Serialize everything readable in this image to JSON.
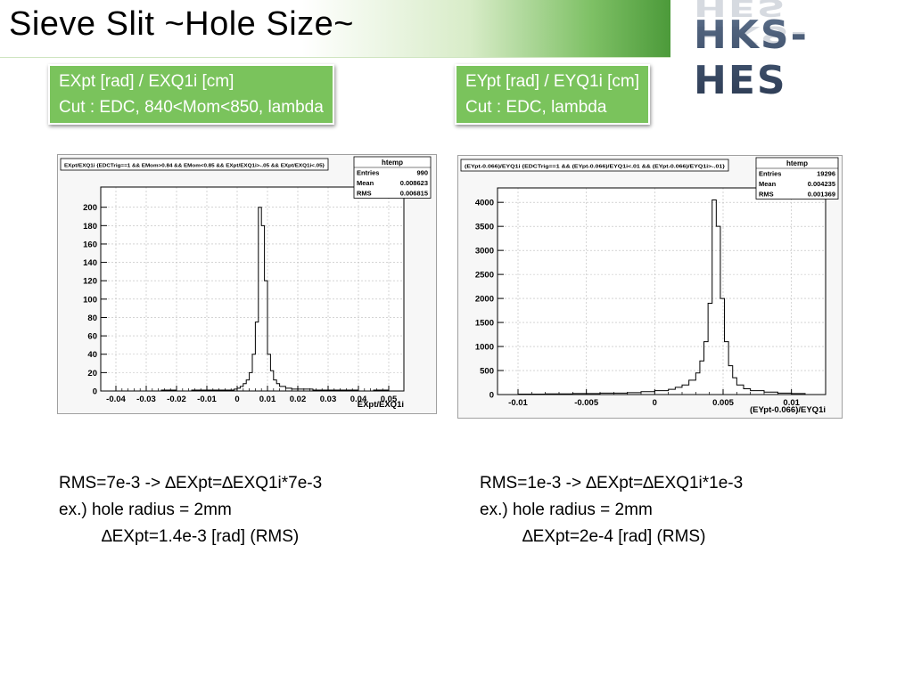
{
  "slide": {
    "title": "Sieve Slit ~Hole Size~",
    "logo_text": "HKS-HES"
  },
  "left_box": {
    "line1": "EXpt [rad] / EXQ1i [cm]",
    "line2": "Cut : EDC, 840<Mom<850, lambda"
  },
  "right_box": {
    "line1": "EYpt [rad] / EYQ1i [cm]",
    "line2": "Cut : EDC, lambda"
  },
  "left_notes": {
    "line1": "RMS=7e-3 -> ∆EXpt=∆EXQ1i*7e-3",
    "line2": "ex.) hole radius = 2mm",
    "line3": "∆EXpt=1.4e-3 [rad] (RMS)"
  },
  "right_notes": {
    "line1": "RMS=1e-3 -> ∆EXpt=∆EXQ1i*1e-3",
    "line2": "ex.) hole radius = 2mm",
    "line3": "∆EXpt=2e-4 [rad] (RMS)"
  },
  "chart_data": [
    {
      "type": "histogram",
      "title": "EXpt/EXQ1i {EDCTrig==1 && EMom>0.84 && EMom<0.85 && EXpt/EXQ1i>-.05 && EXpt/EXQ1i<.05}",
      "xlabel": "EXpt/EXQ1i",
      "ylabel": "",
      "xlim": [
        -0.045,
        0.055
      ],
      "ylim": [
        0,
        222
      ],
      "xticks": [
        -0.04,
        -0.03,
        -0.02,
        -0.01,
        0,
        0.01,
        0.02,
        0.03,
        0.04,
        0.05
      ],
      "xtick_labels": [
        "-0.04",
        "-0.03",
        "-0.02",
        "-0.01",
        "0",
        "0.01",
        "0.02",
        "0.03",
        "0.04",
        "0.05"
      ],
      "yticks": [
        0,
        20,
        40,
        60,
        80,
        100,
        120,
        140,
        160,
        180,
        200
      ],
      "ytick_labels": [
        "0",
        "20",
        "40",
        "60",
        "80",
        "100",
        "120",
        "140",
        "160",
        "180",
        "200"
      ],
      "grid": true,
      "stats": {
        "name": "htemp",
        "rows": [
          {
            "label": "Entries",
            "value": "990"
          },
          {
            "label": "Mean",
            "value": "0.008623"
          },
          {
            "label": "RMS",
            "value": "0.006815"
          }
        ]
      },
      "bins": [
        [
          -0.04,
          0
        ],
        [
          -0.035,
          0
        ],
        [
          -0.03,
          0
        ],
        [
          -0.025,
          1
        ],
        [
          -0.02,
          0
        ],
        [
          -0.015,
          1
        ],
        [
          -0.01,
          1
        ],
        [
          -0.005,
          1
        ],
        [
          -0.003,
          1
        ],
        [
          -0.001,
          2
        ],
        [
          0.0,
          3
        ],
        [
          0.001,
          5
        ],
        [
          0.002,
          8
        ],
        [
          0.003,
          12
        ],
        [
          0.004,
          20
        ],
        [
          0.005,
          40
        ],
        [
          0.006,
          75
        ],
        [
          0.007,
          200
        ],
        [
          0.008,
          180
        ],
        [
          0.009,
          120
        ],
        [
          0.01,
          40
        ],
        [
          0.011,
          22
        ],
        [
          0.012,
          12
        ],
        [
          0.013,
          8
        ],
        [
          0.014,
          5
        ],
        [
          0.016,
          3
        ],
        [
          0.018,
          2
        ],
        [
          0.02,
          2
        ],
        [
          0.025,
          1
        ],
        [
          0.03,
          1
        ],
        [
          0.035,
          1
        ],
        [
          0.04,
          0
        ],
        [
          0.045,
          1
        ]
      ]
    },
    {
      "type": "histogram",
      "title": "(EYpt-0.066)/EYQ1i {EDCTrig==1 && (EYpt-0.066)/EYQ1i<.01 && (EYpt-0.066)/EYQ1i>-.01}",
      "xlabel": "(EYpt-0.066)/EYQ1i",
      "ylabel": "",
      "xlim": [
        -0.0115,
        0.0125
      ],
      "ylim": [
        0,
        4300
      ],
      "xticks": [
        -0.01,
        -0.005,
        0,
        0.005,
        0.01
      ],
      "xtick_labels": [
        "-0.01",
        "-0.005",
        "0",
        "0.005",
        "0.01"
      ],
      "yticks": [
        0,
        500,
        1000,
        1500,
        2000,
        2500,
        3000,
        3500,
        4000
      ],
      "ytick_labels": [
        "0",
        "500",
        "1000",
        "1500",
        "2000",
        "2500",
        "3000",
        "3500",
        "4000"
      ],
      "grid": true,
      "stats": {
        "name": "htemp",
        "rows": [
          {
            "label": "Entries",
            "value": "19296"
          },
          {
            "label": "Mean",
            "value": "0.004235"
          },
          {
            "label": "RMS",
            "value": "0.001369"
          }
        ]
      },
      "bins": [
        [
          -0.01,
          10
        ],
        [
          -0.008,
          15
        ],
        [
          -0.006,
          20
        ],
        [
          -0.004,
          30
        ],
        [
          -0.002,
          40
        ],
        [
          -0.001,
          60
        ],
        [
          0.0,
          80
        ],
        [
          0.001,
          110
        ],
        [
          0.0015,
          150
        ],
        [
          0.002,
          200
        ],
        [
          0.0025,
          300
        ],
        [
          0.003,
          450
        ],
        [
          0.0033,
          700
        ],
        [
          0.0036,
          1100
        ],
        [
          0.0039,
          1900
        ],
        [
          0.0042,
          4050
        ],
        [
          0.0045,
          3500
        ],
        [
          0.0048,
          2000
        ],
        [
          0.0051,
          1100
        ],
        [
          0.0054,
          600
        ],
        [
          0.0057,
          350
        ],
        [
          0.006,
          200
        ],
        [
          0.0065,
          120
        ],
        [
          0.007,
          80
        ],
        [
          0.008,
          50
        ],
        [
          0.009,
          30
        ],
        [
          0.01,
          20
        ]
      ]
    }
  ]
}
